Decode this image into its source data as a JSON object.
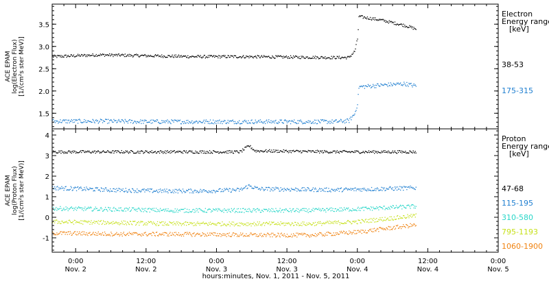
{
  "chart_data": {
    "type": "scatter",
    "x_axis": {
      "title": "hours:minutes, Nov.  1, 2011 - Nov.  5, 2011",
      "ticks": [
        {
          "t": 0,
          "time": "0:00",
          "date": "Nov. 2"
        },
        {
          "t": 12,
          "time": "12:00",
          "date": "Nov. 2"
        },
        {
          "t": 24,
          "time": "0:00",
          "date": "Nov. 3"
        },
        {
          "t": 36,
          "time": "12:00",
          "date": "Nov. 3"
        },
        {
          "t": 48,
          "time": "0:00",
          "date": "Nov. 4"
        },
        {
          "t": 60,
          "time": "12:00",
          "date": "Nov. 4"
        },
        {
          "t": 72,
          "time": "0:00",
          "date": "Nov. 5"
        }
      ],
      "xlim": [
        -4,
        72
      ]
    },
    "panels": [
      {
        "ylabel": [
          "ACE EPAM",
          "log(Electron Flux)",
          "[1/(cm²s ster MeV)]"
        ],
        "yticks": [
          1.5,
          2.0,
          2.5,
          3.0,
          3.5
        ],
        "ylim": [
          1.15,
          3.95
        ],
        "legend_title": [
          "Electron",
          "Energy range",
          "[keV]"
        ],
        "series": [
          {
            "name": "38-53",
            "color": "#000000",
            "points": [
              [
                -4,
                2.78
              ],
              [
                4,
                2.82
              ],
              [
                12,
                2.8
              ],
              [
                20,
                2.78
              ],
              [
                28,
                2.78
              ],
              [
                36,
                2.77
              ],
              [
                44,
                2.76
              ],
              [
                46.5,
                2.76
              ],
              [
                47.5,
                2.9
              ],
              [
                48,
                3.2
              ],
              [
                48.2,
                3.68
              ],
              [
                52,
                3.6
              ],
              [
                56,
                3.48
              ],
              [
                58,
                3.4
              ]
            ]
          },
          {
            "name": "175-315",
            "color": "#1e7ed0",
            "points": [
              [
                -4,
                1.33
              ],
              [
                4,
                1.33
              ],
              [
                12,
                1.32
              ],
              [
                20,
                1.32
              ],
              [
                28,
                1.32
              ],
              [
                36,
                1.32
              ],
              [
                44,
                1.32
              ],
              [
                46.5,
                1.34
              ],
              [
                47.5,
                1.5
              ],
              [
                48,
                1.75
              ],
              [
                48.2,
                2.1
              ],
              [
                52,
                2.14
              ],
              [
                56,
                2.17
              ],
              [
                58,
                2.12
              ]
            ]
          }
        ]
      },
      {
        "ylabel": [
          "ACE EPAM",
          "log(Proton Flux)",
          "[1/(cm²s ster MeV)]"
        ],
        "yticks": [
          -1,
          0,
          1,
          2,
          3,
          4
        ],
        "ylim": [
          -1.7,
          4.3
        ],
        "legend_title": [
          "Proton",
          "Energy range",
          "[keV]"
        ],
        "series": [
          {
            "name": "47-68",
            "color": "#000000",
            "points": [
              [
                -4,
                3.2
              ],
              [
                12,
                3.2
              ],
              [
                28,
                3.2
              ],
              [
                29.5,
                3.5
              ],
              [
                30.5,
                3.25
              ],
              [
                44,
                3.2
              ],
              [
                58,
                3.2
              ]
            ]
          },
          {
            "name": "115-195",
            "color": "#1e7ed0",
            "points": [
              [
                -4,
                1.45
              ],
              [
                6,
                1.35
              ],
              [
                14,
                1.3
              ],
              [
                22,
                1.3
              ],
              [
                28,
                1.35
              ],
              [
                29.5,
                1.55
              ],
              [
                31,
                1.4
              ],
              [
                44,
                1.35
              ],
              [
                52,
                1.4
              ],
              [
                58,
                1.45
              ]
            ]
          },
          {
            "name": "310-580",
            "color": "#27d6c8",
            "points": [
              [
                -4,
                0.45
              ],
              [
                8,
                0.4
              ],
              [
                16,
                0.35
              ],
              [
                24,
                0.35
              ],
              [
                32,
                0.35
              ],
              [
                40,
                0.35
              ],
              [
                48,
                0.42
              ],
              [
                58,
                0.55
              ]
            ]
          },
          {
            "name": "795-1193",
            "color": "#c6e01a",
            "points": [
              [
                -4,
                -0.2
              ],
              [
                8,
                -0.25
              ],
              [
                16,
                -0.3
              ],
              [
                24,
                -0.3
              ],
              [
                32,
                -0.3
              ],
              [
                40,
                -0.3
              ],
              [
                48,
                -0.2
              ],
              [
                58,
                0.1
              ]
            ]
          },
          {
            "name": "1060-1900",
            "color": "#f0820f",
            "points": [
              [
                -4,
                -0.75
              ],
              [
                8,
                -0.8
              ],
              [
                16,
                -0.8
              ],
              [
                24,
                -0.82
              ],
              [
                32,
                -0.85
              ],
              [
                40,
                -0.85
              ],
              [
                48,
                -0.7
              ],
              [
                58,
                -0.35
              ]
            ]
          }
        ]
      }
    ],
    "grid": false
  }
}
